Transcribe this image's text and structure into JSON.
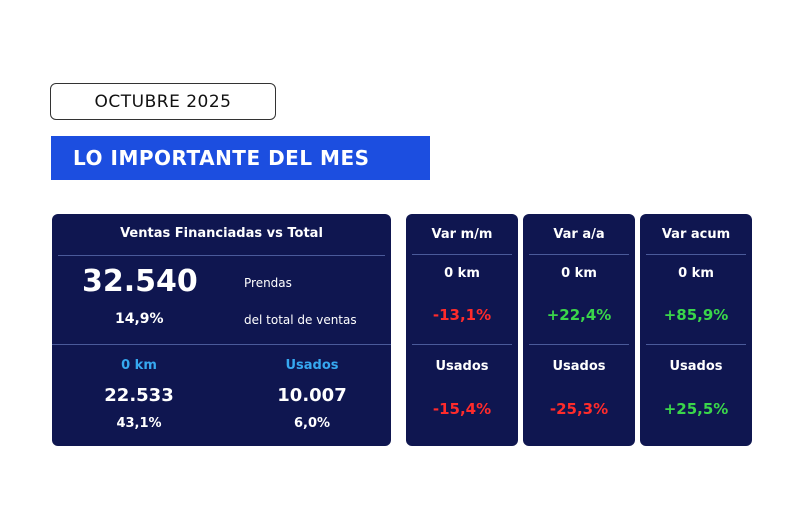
{
  "header": {
    "date": "OCTUBRE 2025",
    "headline": "LO IMPORTANTE DEL MES"
  },
  "summary": {
    "title": "Ventas Financiadas vs Total",
    "total_value": "32.540",
    "total_unit": "Prendas",
    "total_pct": "14,9%",
    "total_pct_label": "del total de ventas",
    "new": {
      "label": "0 km",
      "value": "22.533",
      "pct": "43,1%"
    },
    "used": {
      "label": "Usados",
      "value": "10.007",
      "pct": "6,0%"
    }
  },
  "variations": [
    {
      "title": "Var m/m",
      "new_label": "0 km",
      "new_value": "-13,1%",
      "used_label": "Usados",
      "used_value": "-15,4%"
    },
    {
      "title": "Var a/a",
      "new_label": "0 km",
      "new_value": "+22,4%",
      "used_label": "Usados",
      "used_value": "-25,3%"
    },
    {
      "title": "Var acum",
      "new_label": "0 km",
      "new_value": "+85,9%",
      "used_label": "Usados",
      "used_value": "+25,5%"
    }
  ],
  "colors": {
    "panel_bg": "#0f1650",
    "headline_bg": "#1c4ee0",
    "positive": "#3ad64a",
    "negative": "#ff2b2b",
    "accent_label": "#36a8f0"
  }
}
